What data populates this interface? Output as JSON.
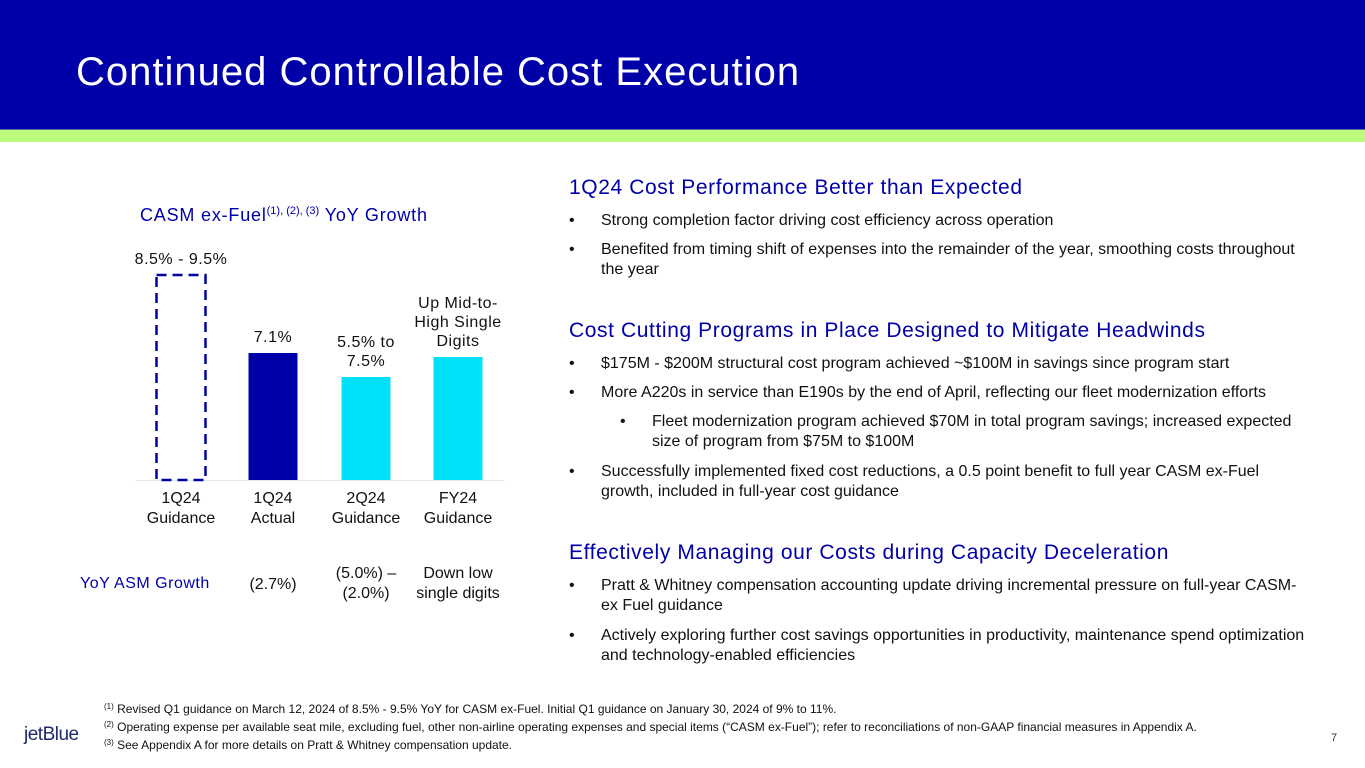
{
  "header": {
    "title": "Continued Controllable Cost Execution"
  },
  "colors": {
    "header_bg": "#0000a8",
    "accent_bar": "#bdfd7c",
    "heading_text": "#0000a8",
    "bar_actual": "#0000a8",
    "bar_guidance": "#00e0fa",
    "dashed_outline": "#0000a8"
  },
  "chart_data": {
    "type": "bar",
    "title": "CASM ex-Fuel YoY Growth",
    "title_main": "CASM ex-Fuel",
    "title_superscript": "(1), (2), (3)",
    "title_suffix": "YoY Growth",
    "categories": [
      "1Q24 Guidance",
      "1Q24 Actual",
      "2Q24 Guidance",
      "FY24 Guidance"
    ],
    "category_lines": [
      [
        "1Q24",
        "Guidance"
      ],
      [
        "1Q24",
        "Actual"
      ],
      [
        "2Q24",
        "Guidance"
      ],
      [
        "FY24",
        "Guidance"
      ]
    ],
    "values": [
      9.0,
      7.1,
      6.0,
      7.0
    ],
    "value_labels": [
      "8.5% - 9.5%",
      "7.1%",
      "5.5% to 7.5%",
      "Up Mid-to-High Single Digits"
    ],
    "value_label_lines": [
      [
        "8.5% - 9.5%"
      ],
      [
        "7.1%"
      ],
      [
        "5.5% to",
        "7.5%"
      ],
      [
        "Up Mid-to-",
        "High Single",
        "Digits"
      ]
    ],
    "bar_styles": [
      "dashed-outline",
      "solid-dark",
      "solid-light",
      "solid-light"
    ],
    "xlabel": "",
    "ylabel": "",
    "ylim": [
      0,
      9.5
    ],
    "grid": false,
    "legend": "none"
  },
  "asm_row": {
    "label": "YoY ASM Growth",
    "values": [
      [
        "(2.7%)"
      ],
      [
        "(5.0%) –",
        "(2.0%)"
      ],
      [
        "Down low",
        "single digits"
      ]
    ]
  },
  "sections": [
    {
      "heading": "1Q24 Cost Performance Better than Expected",
      "bullets": [
        {
          "level": 1,
          "text": "Strong completion factor driving cost efficiency across operation"
        },
        {
          "level": 1,
          "text": "Benefited from timing shift of expenses into the remainder of the year, smoothing costs throughout the year"
        }
      ]
    },
    {
      "heading": "Cost Cutting Programs in Place Designed to Mitigate Headwinds",
      "bullets": [
        {
          "level": 1,
          "text": "$175M - $200M structural cost program achieved ~$100M in savings since program start"
        },
        {
          "level": 1,
          "text": "More A220s in service than E190s by the end of April, reflecting our fleet modernization efforts"
        },
        {
          "level": 2,
          "text": "Fleet modernization program achieved $70M in total program savings; increased expected size of program from $75M to $100M"
        },
        {
          "level": 1,
          "text": "Successfully implemented fixed cost reductions, a 0.5 point benefit to full year CASM ex-Fuel growth, included in full-year cost guidance"
        }
      ]
    },
    {
      "heading": "Effectively Managing our Costs during Capacity Deceleration",
      "bullets": [
        {
          "level": 1,
          "text": "Pratt & Whitney compensation accounting update driving incremental pressure on full-year CASM-ex Fuel guidance"
        },
        {
          "level": 1,
          "text": "Actively exploring further cost savings opportunities in productivity, maintenance spend optimization and technology-enabled efficiencies"
        }
      ]
    }
  ],
  "bullet_glyph": "•",
  "footnotes": [
    {
      "mark": "(1)",
      "text": "Revised Q1 guidance on March 12, 2024 of 8.5% - 9.5% YoY for CASM ex-Fuel. Initial Q1 guidance on January 30, 2024 of 9% to 11%."
    },
    {
      "mark": "(2)",
      "text": "Operating expense per available seat mile, excluding fuel, other non-airline operating expenses and special items (“CASM ex-Fuel”); refer to reconciliations of non-GAAP financial measures in Appendix A."
    },
    {
      "mark": "(3)",
      "text": "See Appendix A for more details on Pratt & Whitney compensation update."
    }
  ],
  "footer": {
    "logo_text": "jetBlue",
    "page_number": "7"
  }
}
